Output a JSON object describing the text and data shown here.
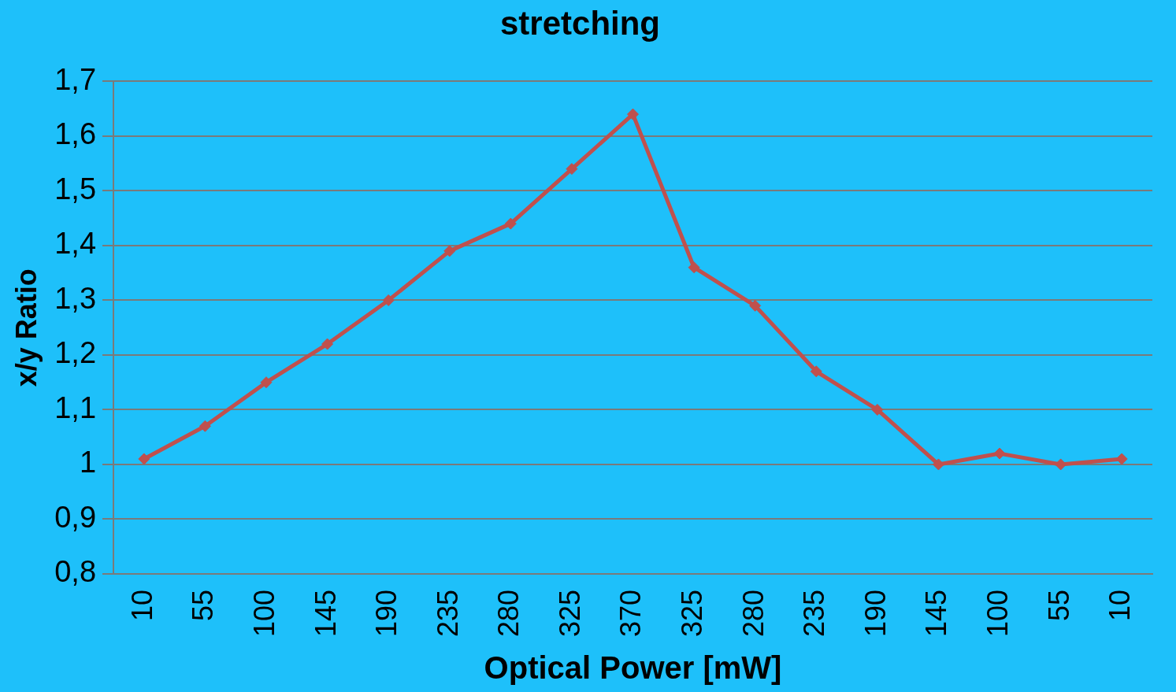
{
  "chart_data": {
    "type": "line",
    "title": "stretching",
    "xlabel": "Optical Power [mW]",
    "ylabel": "x/y Ratio",
    "categories": [
      "10",
      "55",
      "100",
      "145",
      "190",
      "235",
      "280",
      "325",
      "370",
      "325",
      "280",
      "235",
      "190",
      "145",
      "100",
      "55",
      "10"
    ],
    "series": [
      {
        "color": "#c0504d",
        "values": [
          1.01,
          1.07,
          1.15,
          1.22,
          1.3,
          1.39,
          1.44,
          1.54,
          1.64,
          1.36,
          1.29,
          1.17,
          1.1,
          1.0,
          1.02,
          1.0,
          1.01
        ]
      }
    ],
    "ylim": [
      0.8,
      1.7
    ],
    "yticks": [
      {
        "value": 0.8,
        "label": "0,8"
      },
      {
        "value": 0.9,
        "label": "0,9"
      },
      {
        "value": 1,
        "label": "1"
      },
      {
        "value": 1.1,
        "label": "1,1"
      },
      {
        "value": 1.2,
        "label": "1,2"
      },
      {
        "value": 1.3,
        "label": "1,3"
      },
      {
        "value": 1.4,
        "label": "1,4"
      },
      {
        "value": 1.5,
        "label": "1,5"
      },
      {
        "value": 1.6,
        "label": "1,6"
      },
      {
        "value": 1.7,
        "label": "1,7"
      }
    ],
    "grid": "y",
    "legend": false,
    "marker": "diamond",
    "line_style": "solid"
  }
}
